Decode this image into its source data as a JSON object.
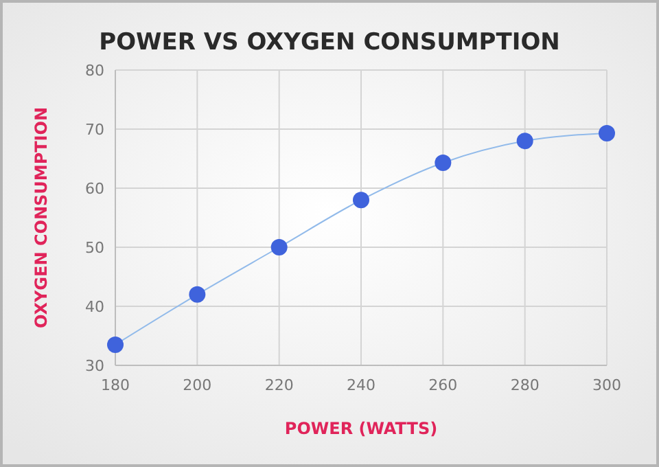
{
  "chart_data": {
    "type": "line",
    "title": "POWER VS OXYGEN CONSUMPTION",
    "xlabel": "POWER (WATTS)",
    "ylabel": "OXYGEN CONSUMPTION",
    "x": [
      180,
      200,
      220,
      240,
      260,
      280,
      300
    ],
    "series": [
      {
        "color": "#3f63dc",
        "values": [
          33.5,
          42,
          50,
          58,
          64.3,
          68,
          69.3
        ]
      }
    ],
    "xlim": [
      180,
      300
    ],
    "xticks": [
      180,
      200,
      220,
      240,
      260,
      280,
      300
    ],
    "ylim": [
      30,
      80
    ],
    "yticks": [
      30,
      40,
      50,
      60,
      70,
      80
    ],
    "grid": true,
    "marker": "circle",
    "line_style": "solid"
  }
}
